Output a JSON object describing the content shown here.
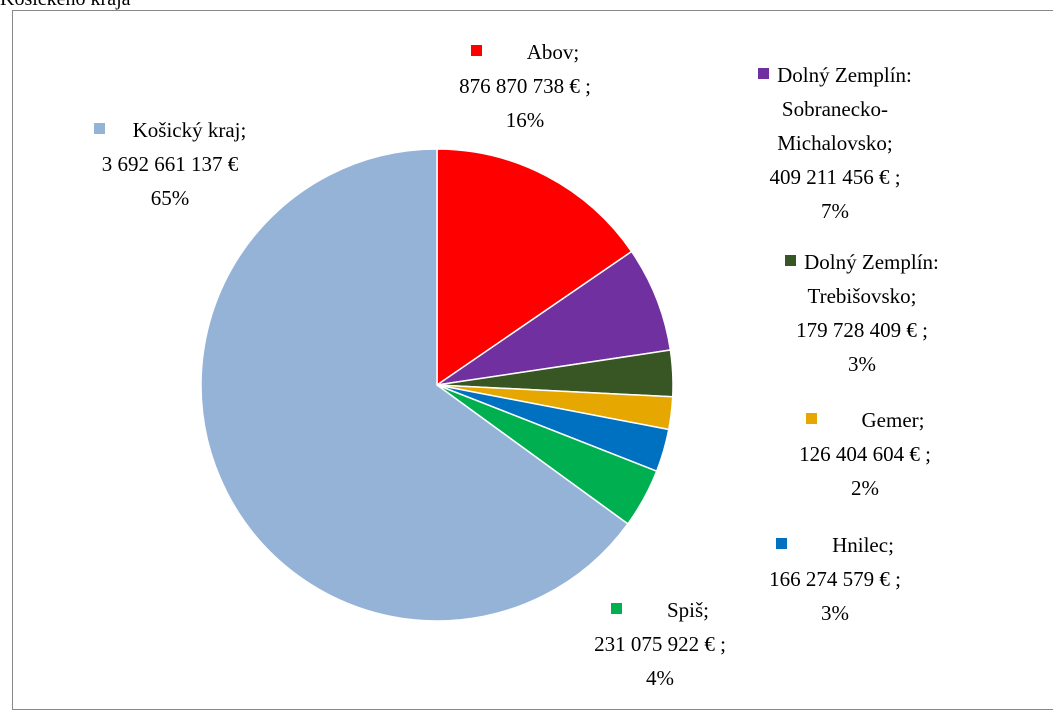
{
  "chart_data": {
    "type": "pie",
    "title": "Košického kraja",
    "categories": [
      "Abov;",
      "Dolný Zemplín: Sobranecko-Michalovsko;",
      "Dolný Zemplín: Trebišovsko;",
      "Gemer;",
      "Hnilec;",
      "Spiš;",
      "Košický kraj;"
    ],
    "values": [
      876870738,
      409211456,
      179728409,
      126404604,
      166274579,
      231075922,
      3692661137
    ],
    "value_labels": [
      "876 870 738 € ;",
      "409 211 456 € ;",
      "179 728 409 € ;",
      "126 404 604 € ;",
      "166 274 579 € ;",
      "231 075 922 € ;",
      "3 692 661 137 €"
    ],
    "percentages": [
      16,
      7,
      3,
      2,
      3,
      4,
      65
    ],
    "percentage_labels": [
      "16%",
      "7%",
      "3%",
      "2%",
      "3%",
      "4%",
      "65%"
    ],
    "colors": [
      "#ff0000",
      "#7030a0",
      "#375623",
      "#e6a800",
      "#0070c0",
      "#00b050",
      "#95b3d7"
    ]
  }
}
